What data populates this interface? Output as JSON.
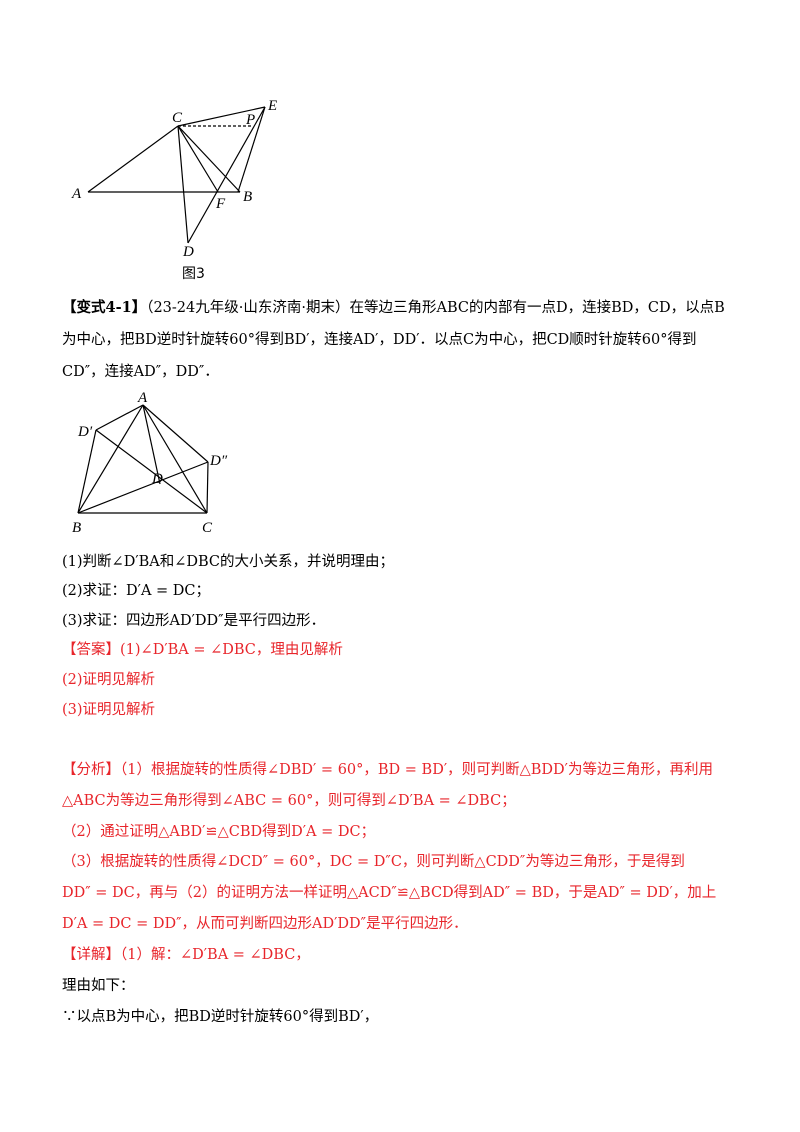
{
  "figure3": {
    "labels": [
      "C",
      "E",
      "P",
      "A",
      "B",
      "F",
      "D"
    ],
    "caption": "图3"
  },
  "problem": {
    "tag": "【变式4-1】",
    "lines": [
      "（23-24九年级·山东济南·期末）在等边三角形ABC的内部有一点D，连接BD，CD，以点B",
      "为中心，把BD逆时针旋转60°得到BD′，连接AD′，DD′．以点C为中心，把CD顺时针旋转60°得到",
      "CD″，连接AD″，DD″．"
    ]
  },
  "figure2": {
    "labels": [
      "A",
      "D′",
      "D″",
      "D",
      "B",
      "C"
    ]
  },
  "questions": [
    "(1)判断∠D′BA和∠DBC的大小关系，并说明理由；",
    "(2)求证：D′A = DC；",
    "(3)求证：四边形AD′DD″是平行四边形．"
  ],
  "answer": [
    "【答案】(1)∠D′BA = ∠DBC，理由见解析",
    "(2)证明见解析",
    "(3)证明见解析"
  ],
  "analysis": [
    "【分析】（1）根据旋转的性质得∠DBD′ = 60°，BD = BD′，则可判断△BDD′为等边三角形，再利用",
    "△ABC为等边三角形得到∠ABC = 60°，则可得到∠D′BA = ∠DBC；",
    "（2）通过证明△ABD′≌△CBD得到D′A = DC；",
    "（3）根据旋转的性质得∠DCD″ = 60°，DC = D″C，则可判断△CDD″为等边三角形，于是得到",
    "DD″ = DC，再与（2）的证明方法一样证明△ACD″≌△BCD得到AD″ = BD，于是AD″ = DD′，加上",
    "D′A = DC = DD″，从而可判断四边形AD′DD″是平行四边形．"
  ],
  "detail": [
    "【详解】（1）解：∠D′BA = ∠DBC，",
    "理由如下：",
    "∵以点B为中心，把BD逆时针旋转60°得到BD′，"
  ]
}
